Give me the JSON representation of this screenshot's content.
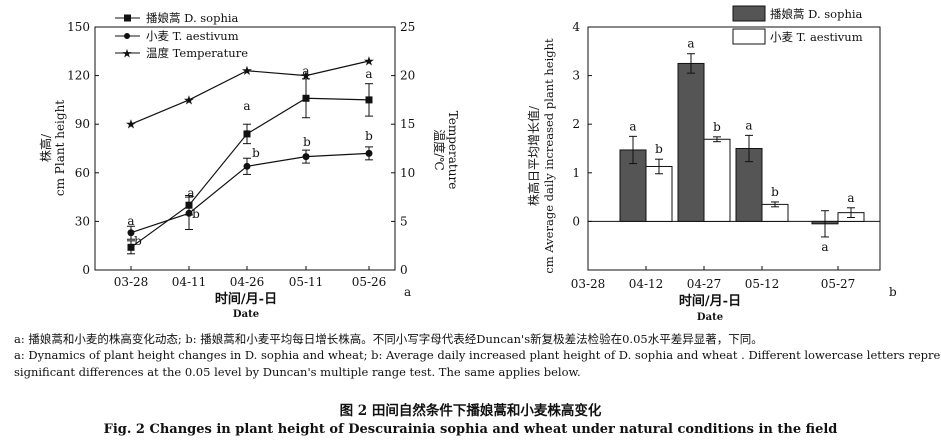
{
  "panel_a_legend": [
    "播娘蒿 D. sophia",
    "小麦 T. aestivum",
    "温度 Temperature"
  ],
  "panel_b_legend": [
    "播娘蒿 D. sophia",
    "小麦 T. aestivum"
  ],
  "panel_a_marker": "a",
  "panel_b_marker": "b",
  "chart_data": [
    {
      "type": "line",
      "categories": [
        "03-28",
        "04-11",
        "04-26",
        "05-11",
        "05-26"
      ],
      "xlabel": "时间/月-日 Date",
      "ylabel": "株高/cm Plant height",
      "y2label": "温度/℃ Temperature",
      "ylim": [
        0,
        150
      ],
      "yticks": [
        0,
        30,
        60,
        90,
        120,
        150
      ],
      "y2lim": [
        0,
        25
      ],
      "y2ticks": [
        0,
        5,
        10,
        15,
        20,
        25
      ],
      "series": [
        {
          "name": "播娘蒿 D. sophia",
          "marker": "square",
          "axis": "left",
          "values": [
            14,
            40,
            84,
            106,
            105
          ],
          "errors": [
            4,
            6,
            6,
            12,
            10
          ],
          "letters": [
            "b",
            "a",
            "a",
            "a",
            "a"
          ]
        },
        {
          "name": "小麦 T. aestivum",
          "marker": "circle",
          "axis": "left",
          "values": [
            23,
            35,
            64,
            70,
            72
          ],
          "errors": [
            4,
            10,
            5,
            4,
            4
          ],
          "letters": [
            "a",
            "b",
            "b",
            "b",
            "b"
          ]
        },
        {
          "name": "温度 Temperature",
          "marker": "star",
          "axis": "right",
          "values": [
            15,
            17.5,
            20.5,
            20,
            21.5
          ]
        }
      ]
    },
    {
      "type": "bar",
      "categories": [
        "03-28",
        "04-12",
        "04-27",
        "05-12",
        "05-27"
      ],
      "xlabel": "时间/月-日 Date",
      "ylabel": "株高日平均增长值/cm Average daily increased plant height",
      "ylim": [
        -1,
        4
      ],
      "yticks": [
        0,
        1,
        2,
        3,
        4
      ],
      "series": [
        {
          "name": "播娘蒿 D. sophia",
          "color": "#555555",
          "values": [
            null,
            1.47,
            3.25,
            1.5,
            -0.05
          ],
          "errors": [
            null,
            0.28,
            0.2,
            0.27,
            0.27
          ],
          "letters": [
            "",
            "a",
            "a",
            "a",
            "a"
          ]
        },
        {
          "name": "小麦 T. aestivum",
          "color": "#ffffff",
          "values": [
            null,
            1.13,
            1.69,
            0.35,
            0.18
          ],
          "errors": [
            null,
            0.15,
            0.05,
            0.05,
            0.1
          ],
          "letters": [
            "",
            "b",
            "b",
            "b",
            "a"
          ]
        }
      ]
    }
  ],
  "caption": {
    "line1": "a: 播娘蒿和小麦的株高变化动态; b: 播娘蒿和小麦平均每日增长株高。不同小写字母代表经Duncan's新复极差法检验在0.05水平差异显著，下同。",
    "line2": "a: Dynamics of plant height changes in D. sophia and wheat; b: Average daily increased plant height of D. sophia and wheat . Different lowercase letters represent",
    "line3": "significant differences at the 0.05 level by Duncan's multiple range test. The same applies below.",
    "title_cn": "图 2   田间自然条件下播娘蒿和小麦株高变化",
    "title_en": "Fig. 2   Changes in plant height of Descurainia sophia and wheat under natural conditions in the field"
  }
}
